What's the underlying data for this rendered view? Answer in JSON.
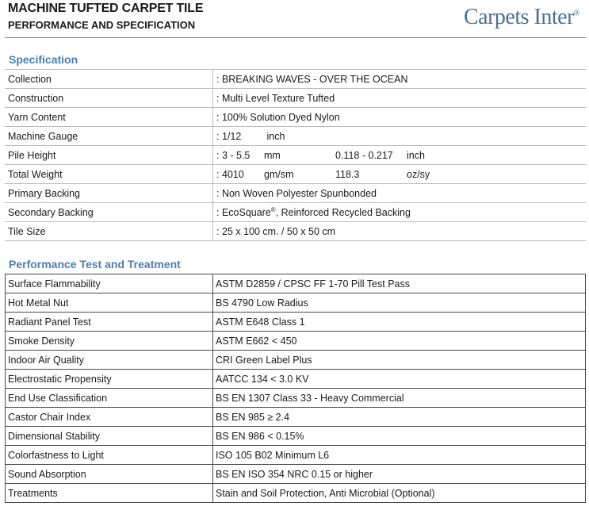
{
  "header": {
    "title": "MACHINE TUFTED CARPET TILE",
    "subtitle": "PERFORMANCE AND SPECIFICATION",
    "brand": "Carpets Inter",
    "brand_mark": "®"
  },
  "colors": {
    "section_title": "#4a7fb1",
    "brand": "#4a6f96"
  },
  "specification": {
    "heading": "Specification",
    "rows": [
      {
        "label": "Collection",
        "value": ": BREAKING WAVES - OVER THE OCEAN"
      },
      {
        "label": "Construction",
        "value": ": Multi Level Texture Tufted"
      },
      {
        "label": "Yarn Content",
        "value": ": 100% Solution Dyed Nylon"
      },
      {
        "label": "Machine Gauge",
        "value": ": 1/12",
        "unit": "inch"
      },
      {
        "label": "Pile Height",
        "value": ": 3 - 5.5",
        "unit": "mm",
        "value2": "0.118 - 0.217",
        "unit2": "inch"
      },
      {
        "label": "Total Weight",
        "value": ": 4010",
        "unit": "gm/sm",
        "value2": "118.3",
        "unit2": "oz/sy"
      },
      {
        "label": "Primary Backing",
        "value": ": Non Woven Polyester Spunbonded"
      },
      {
        "label": "Secondary Backing",
        "value": ": EcoSquare",
        "mark": "®",
        "value_tail": ", Reinforced Recycled Backing"
      },
      {
        "label": "Tile Size",
        "value": ": 25 x 100 cm. / 50 x 50 cm"
      }
    ]
  },
  "performance": {
    "heading": "Performance Test and Treatment",
    "rows": [
      {
        "label": "Surface Flammability",
        "value": "ASTM D2859 / CPSC FF 1-70 Pill Test Pass"
      },
      {
        "label": "Hot Metal Nut",
        "value": "BS 4790 Low Radius"
      },
      {
        "label": "Radiant Panel Test",
        "value": "ASTM E648 Class 1"
      },
      {
        "label": "Smoke Density",
        "value": "ASTM E662 < 450"
      },
      {
        "label": "Indoor Air Quality",
        "value": "CRI Green Label Plus"
      },
      {
        "label": "Electrostatic Propensity",
        "value": "AATCC 134 < 3.0 KV"
      },
      {
        "label": "End Use Classification",
        "value": "BS EN 1307 Class 33 - Heavy Commercial"
      },
      {
        "label": "Castor Chair Index",
        "value": "BS EN 985 ≥ 2.4"
      },
      {
        "label": "Dimensional Stability",
        "value": "BS EN 986 < 0.15%"
      },
      {
        "label": "Colorfastness to Light",
        "value": "ISO 105 B02 Minimum L6"
      },
      {
        "label": "Sound Absorption",
        "value": "BS EN ISO 354 NRC 0.15 or higher"
      },
      {
        "label": "Treatments",
        "value": "Stain and Soil Protection, Anti Microbial (Optional)"
      }
    ]
  }
}
